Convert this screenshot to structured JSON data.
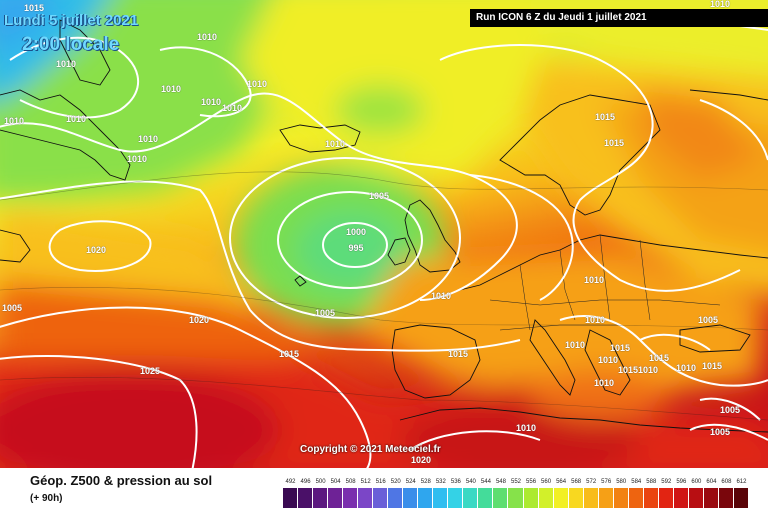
{
  "header": {
    "date": "Lundi 5 juillet 2021",
    "time": "2:00 locale",
    "run": "Run ICON 6 Z du Jeudi 1 juillet 2021"
  },
  "map": {
    "copyright": "Copyright © 2021 Meteociel.fr",
    "pressure_labels": [
      {
        "text": "1015",
        "lon": 34,
        "lat": 8
      },
      {
        "text": "1010",
        "lon": 720,
        "lat": 4
      },
      {
        "text": "1010",
        "lon": 207,
        "lat": 37
      },
      {
        "text": "1010",
        "lon": 66,
        "lat": 64
      },
      {
        "text": "1010",
        "lon": 171,
        "lat": 89
      },
      {
        "text": "1010",
        "lon": 257,
        "lat": 84
      },
      {
        "text": "1010",
        "lon": 211,
        "lat": 102
      },
      {
        "text": "1010",
        "lon": 232,
        "lat": 108
      },
      {
        "text": "1010",
        "lon": 14,
        "lat": 121
      },
      {
        "text": "1010",
        "lon": 76,
        "lat": 119
      },
      {
        "text": "1010",
        "lon": 148,
        "lat": 139
      },
      {
        "text": "1010",
        "lon": 137,
        "lat": 159
      },
      {
        "text": "1010",
        "lon": 335,
        "lat": 144
      },
      {
        "text": "1015",
        "lon": 605,
        "lat": 117
      },
      {
        "text": "1015",
        "lon": 614,
        "lat": 143
      },
      {
        "text": "1005",
        "lon": 379,
        "lat": 196
      },
      {
        "text": "1000",
        "lon": 356,
        "lat": 232
      },
      {
        "text": "995",
        "lon": 356,
        "lat": 248
      },
      {
        "text": "1020",
        "lon": 96,
        "lat": 250
      },
      {
        "text": "1010",
        "lon": 594,
        "lat": 280
      },
      {
        "text": "1010",
        "lon": 441,
        "lat": 296
      },
      {
        "text": "1005",
        "lon": 325,
        "lat": 313
      },
      {
        "text": "1005",
        "lon": 12,
        "lat": 308
      },
      {
        "text": "1020",
        "lon": 199,
        "lat": 320
      },
      {
        "text": "1010",
        "lon": 595,
        "lat": 320
      },
      {
        "text": "1005",
        "lon": 708,
        "lat": 320
      },
      {
        "text": "1010",
        "lon": 575,
        "lat": 345
      },
      {
        "text": "1015",
        "lon": 620,
        "lat": 348
      },
      {
        "text": "1015",
        "lon": 289,
        "lat": 354
      },
      {
        "text": "1015",
        "lon": 458,
        "lat": 354
      },
      {
        "text": "1010",
        "lon": 608,
        "lat": 360
      },
      {
        "text": "1015",
        "lon": 659,
        "lat": 358
      },
      {
        "text": "1010",
        "lon": 686,
        "lat": 368
      },
      {
        "text": "1015",
        "lon": 712,
        "lat": 366
      },
      {
        "text": "1025",
        "lon": 150,
        "lat": 371
      },
      {
        "text": "1015",
        "lon": 628,
        "lat": 370
      },
      {
        "text": "1010",
        "lon": 648,
        "lat": 370
      },
      {
        "text": "1010",
        "lon": 604,
        "lat": 383
      },
      {
        "text": "1005",
        "lon": 730,
        "lat": 410
      },
      {
        "text": "1010",
        "lon": 526,
        "lat": 428
      },
      {
        "text": "1005",
        "lon": 720,
        "lat": 432
      },
      {
        "text": "1020",
        "lon": 421,
        "lat": 460
      }
    ]
  },
  "legend": {
    "title": "Géop. Z500 & pression au sol",
    "subtitle": "(+ 90h)",
    "scale": [
      {
        "value": "492",
        "color": "#3a0a52"
      },
      {
        "value": "496",
        "color": "#4a1068"
      },
      {
        "value": "500",
        "color": "#5c1880"
      },
      {
        "value": "504",
        "color": "#6e2296"
      },
      {
        "value": "508",
        "color": "#7a2fae"
      },
      {
        "value": "512",
        "color": "#7b46c7"
      },
      {
        "value": "516",
        "color": "#6a5fd8"
      },
      {
        "value": "520",
        "color": "#4f76e4"
      },
      {
        "value": "524",
        "color": "#3a8eea"
      },
      {
        "value": "528",
        "color": "#2fa6ee"
      },
      {
        "value": "532",
        "color": "#2fbef0"
      },
      {
        "value": "536",
        "color": "#34d2e6"
      },
      {
        "value": "540",
        "color": "#3ad9c4"
      },
      {
        "value": "544",
        "color": "#44dc9a"
      },
      {
        "value": "548",
        "color": "#5ede70"
      },
      {
        "value": "552",
        "color": "#86e24a"
      },
      {
        "value": "556",
        "color": "#acea30"
      },
      {
        "value": "560",
        "color": "#d2f02a"
      },
      {
        "value": "564",
        "color": "#f2f024"
      },
      {
        "value": "568",
        "color": "#f8d820"
      },
      {
        "value": "572",
        "color": "#f8bc1a"
      },
      {
        "value": "576",
        "color": "#f6a016"
      },
      {
        "value": "580",
        "color": "#f28212"
      },
      {
        "value": "584",
        "color": "#ee6410"
      },
      {
        "value": "588",
        "color": "#ea4410"
      },
      {
        "value": "592",
        "color": "#e22412"
      },
      {
        "value": "596",
        "color": "#d01414"
      },
      {
        "value": "600",
        "color": "#b80e12"
      },
      {
        "value": "604",
        "color": "#9a0a10"
      },
      {
        "value": "608",
        "color": "#7a060c"
      },
      {
        "value": "612",
        "color": "#5a0408"
      }
    ]
  }
}
